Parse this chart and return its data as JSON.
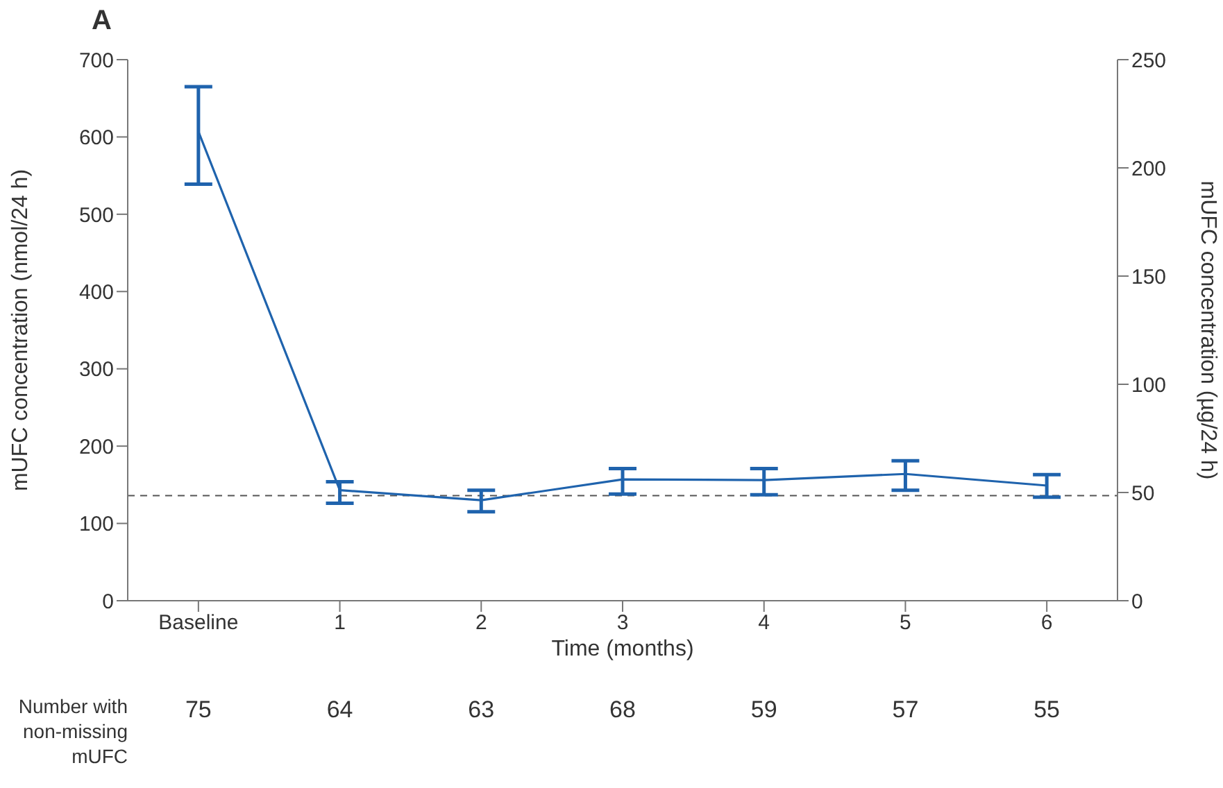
{
  "chart_data": {
    "type": "line",
    "title": "A",
    "xlabel": "Time (months)",
    "ylabel": "mUFC concentration (nmol/24 h)",
    "y2label": "mUFC concentration (µg/24 h)",
    "categories": [
      "Baseline",
      "1",
      "2",
      "3",
      "4",
      "5",
      "6"
    ],
    "series": [
      {
        "color": "#1f63ad",
        "values": [
          607,
          143,
          130,
          157,
          156,
          164,
          149
        ],
        "errors": [
          [
            539,
            665
          ],
          [
            126,
            154
          ],
          [
            115,
            143
          ],
          [
            138,
            171
          ],
          [
            137,
            171
          ],
          [
            143,
            181
          ],
          [
            134,
            163
          ]
        ]
      }
    ],
    "ylim": [
      0,
      700
    ],
    "yticks": [
      0,
      100,
      200,
      300,
      400,
      500,
      600,
      700
    ],
    "y2lim": [
      0,
      250
    ],
    "y2ticks": [
      0,
      50,
      100,
      150,
      200,
      250
    ],
    "ref_lines": [
      {
        "axis": "y",
        "value": 136,
        "color": "#555555",
        "line_style": "dashed"
      }
    ],
    "annotations": [
      "Number with non-missing mUFC",
      "75",
      "64",
      "63",
      "68",
      "59",
      "57",
      "55"
    ],
    "grid": false,
    "legend": false,
    "marker": "none",
    "line_style": "solid"
  }
}
